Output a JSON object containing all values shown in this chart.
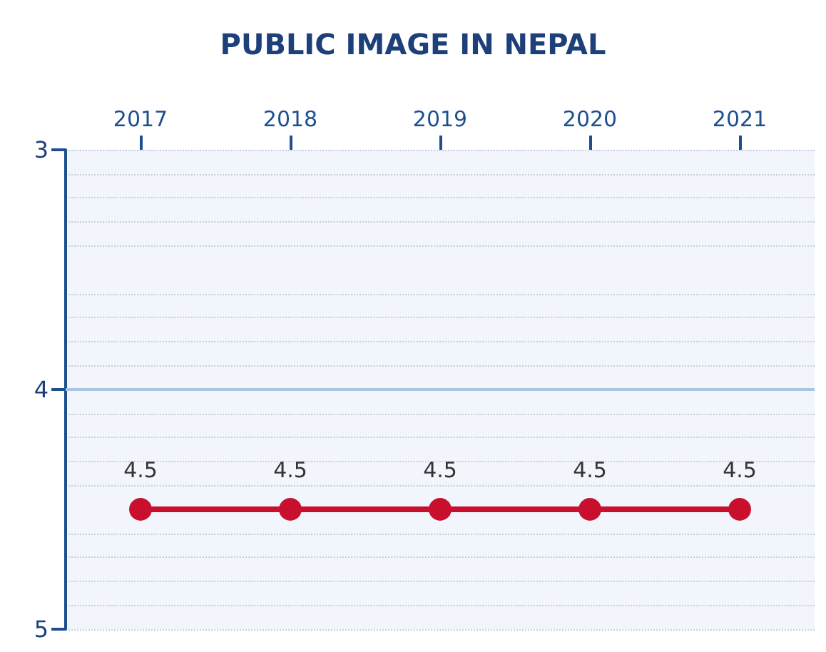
{
  "chart_data": {
    "type": "line",
    "title": "PUBLIC IMAGE IN NEPAL",
    "categories": [
      "2017",
      "2018",
      "2019",
      "2020",
      "2021"
    ],
    "series": [
      {
        "color": "#c8102e",
        "values": [
          4.5,
          4.5,
          4.5,
          4.5,
          4.5
        ]
      }
    ],
    "ref_lines": [
      {
        "axis": "y",
        "value": 4,
        "color": "#a9c6e0"
      }
    ],
    "ylim": [
      5,
      3
    ],
    "yticks": [
      3,
      4,
      5
    ],
    "grid": "y",
    "data_labels": true,
    "marker": "circle",
    "line_style": "solid"
  }
}
